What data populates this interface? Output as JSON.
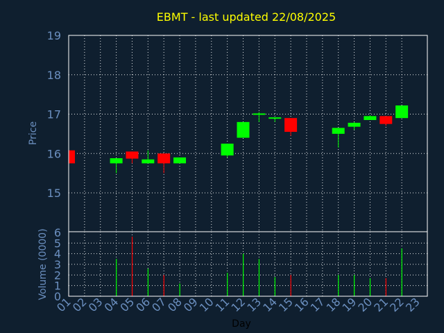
{
  "chart_data": {
    "type": "candlestick",
    "title": "EBMT - last updated 22/08/2025",
    "xlabel": "Day",
    "ylabel_price": "Price",
    "ylabel_volume": "Volume (0000)",
    "price_ylim": [
      15,
      19
    ],
    "price_yticks": [
      "15",
      "16",
      "17",
      "18",
      "19"
    ],
    "volume_ylim": [
      0,
      6
    ],
    "volume_yticks": [
      "0",
      "1",
      "2",
      "3",
      "4",
      "5",
      "6"
    ],
    "x_ticks": [
      "01",
      "02",
      "03",
      "04",
      "05",
      "06",
      "07",
      "08",
      "09",
      "10",
      "11",
      "12",
      "13",
      "14",
      "15",
      "16",
      "17",
      "18",
      "19",
      "20",
      "21",
      "22",
      "23"
    ],
    "grid": true,
    "colors": {
      "up": "#00ff00",
      "down": "#ff0000",
      "background": "#0f1f2f",
      "title": "#ffff00",
      "axis_text": "#6b8fbf"
    },
    "candles": [
      {
        "day": 1,
        "open": 16.08,
        "high": 16.08,
        "low": 15.75,
        "close": 15.75
      },
      {
        "day": 4,
        "open": 15.75,
        "high": 15.88,
        "low": 15.5,
        "close": 15.88
      },
      {
        "day": 5,
        "open": 16.05,
        "high": 16.05,
        "low": 15.75,
        "close": 15.87
      },
      {
        "day": 6,
        "open": 15.75,
        "high": 16.08,
        "low": 15.75,
        "close": 15.85
      },
      {
        "day": 7,
        "open": 16.0,
        "high": 16.0,
        "low": 15.5,
        "close": 15.75
      },
      {
        "day": 8,
        "open": 15.75,
        "high": 15.9,
        "low": 15.75,
        "close": 15.9
      },
      {
        "day": 11,
        "open": 15.95,
        "high": 16.25,
        "low": 15.9,
        "close": 16.25
      },
      {
        "day": 12,
        "open": 16.4,
        "high": 16.8,
        "low": 16.4,
        "close": 16.8
      },
      {
        "day": 13,
        "open": 17.0,
        "high": 17.05,
        "low": 16.8,
        "close": 17.0
      },
      {
        "day": 14,
        "open": 16.9,
        "high": 16.9,
        "low": 16.8,
        "close": 16.9
      },
      {
        "day": 15,
        "open": 16.9,
        "high": 16.9,
        "low": 16.45,
        "close": 16.55
      },
      {
        "day": 18,
        "open": 16.5,
        "high": 16.65,
        "low": 16.15,
        "close": 16.65
      },
      {
        "day": 19,
        "open": 16.68,
        "high": 16.8,
        "low": 16.6,
        "close": 16.78
      },
      {
        "day": 20,
        "open": 16.85,
        "high": 16.97,
        "low": 16.85,
        "close": 16.95
      },
      {
        "day": 21,
        "open": 16.95,
        "high": 16.95,
        "low": 16.7,
        "close": 16.75
      },
      {
        "day": 22,
        "open": 16.9,
        "high": 17.22,
        "low": 16.9,
        "close": 17.22
      }
    ],
    "volume": [
      {
        "day": 1,
        "value": 0.1,
        "dir": "down"
      },
      {
        "day": 4,
        "value": 3.5,
        "dir": "up"
      },
      {
        "day": 5,
        "value": 5.6,
        "dir": "down"
      },
      {
        "day": 6,
        "value": 2.6,
        "dir": "up"
      },
      {
        "day": 7,
        "value": 2.0,
        "dir": "down"
      },
      {
        "day": 8,
        "value": 1.2,
        "dir": "up"
      },
      {
        "day": 11,
        "value": 2.2,
        "dir": "up"
      },
      {
        "day": 12,
        "value": 4.0,
        "dir": "up"
      },
      {
        "day": 13,
        "value": 3.5,
        "dir": "up"
      },
      {
        "day": 14,
        "value": 1.8,
        "dir": "up"
      },
      {
        "day": 15,
        "value": 2.0,
        "dir": "down"
      },
      {
        "day": 18,
        "value": 2.0,
        "dir": "up"
      },
      {
        "day": 19,
        "value": 2.0,
        "dir": "up"
      },
      {
        "day": 20,
        "value": 1.7,
        "dir": "up"
      },
      {
        "day": 21,
        "value": 1.7,
        "dir": "down"
      },
      {
        "day": 22,
        "value": 4.5,
        "dir": "up"
      }
    ]
  }
}
